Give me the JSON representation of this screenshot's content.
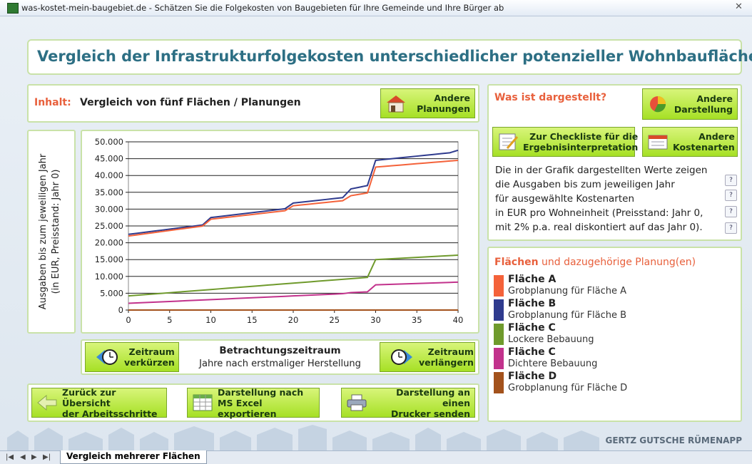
{
  "window_title": "was-kostet-mein-baugebiet.de - Schätzen Sie die Folgekosten von Baugebieten für Ihre Gemeinde und Ihre Bürger ab",
  "header": {
    "title": "Vergleich der Infrastrukturfolgekosten unterschiedlicher potenzieller Wohnbauflächen"
  },
  "content": {
    "label": "Inhalt:",
    "text": "Vergleich von fünf Flächen / Planungen",
    "button": [
      "Andere",
      "Planungen"
    ]
  },
  "period": {
    "shorten": [
      "Zeitraum",
      "verkürzen"
    ],
    "title": "Betrachtungszeitraum",
    "subtitle": "Jahre nach erstmaliger Herstellung",
    "extend": [
      "Zeitraum",
      "verlängern"
    ]
  },
  "bottom_buttons": [
    [
      "Zurück zur Übersicht",
      "der Arbeitsschritte"
    ],
    [
      "Darstellung nach",
      "MS Excel exportieren"
    ],
    [
      "Darstellung an einen",
      "Drucker senden"
    ]
  ],
  "info": {
    "title": "Was ist dargestellt?",
    "buttons": [
      [
        "Andere",
        "Darstellung"
      ],
      [
        "Zur Checkliste für die",
        "Ergebnisinterpretation"
      ],
      [
        "Andere",
        "Kostenarten"
      ]
    ],
    "lines": [
      "Die in der Grafik dargestellten Werte zeigen",
      "die Ausgaben bis zum jeweiligen Jahr",
      "für ausgewählte Kostenarten",
      "in EUR pro Wohneinheit (Preisstand: Jahr 0,",
      "mit 2% p.a. real diskontiert auf das Jahr 0)."
    ],
    "help": [
      "?",
      "?",
      "?",
      "?"
    ]
  },
  "legend_title": [
    "Flächen",
    " und dazugehörige Planung(en)"
  ],
  "footer": {
    "brand": "GERTZ GUTSCHE RÜMENAPP",
    "sheet_tab": "Vergleich mehrerer Flächen",
    "nav": [
      "|◀",
      "◀",
      "▶",
      "▶|"
    ]
  },
  "chart_data": {
    "type": "line",
    "ylabel": [
      "Ausgaben bis zum jeweiligen Jahr",
      "(in EUR, Preisstand: Jahr 0)"
    ],
    "x": [
      0,
      1,
      2,
      3,
      4,
      5,
      6,
      7,
      8,
      9,
      10,
      11,
      12,
      13,
      14,
      15,
      16,
      17,
      18,
      19,
      20,
      21,
      22,
      23,
      24,
      25,
      26,
      27,
      28,
      29,
      30,
      31,
      32,
      33,
      34,
      35,
      36,
      37,
      38,
      39,
      40
    ],
    "xlim": [
      0,
      40
    ],
    "xticks": [
      0,
      5,
      10,
      15,
      20,
      25,
      30,
      35,
      40
    ],
    "ylim": [
      0,
      50000
    ],
    "yticks": [
      0,
      {
        "value": 5000,
        "label": "5.000"
      },
      {
        "value": 10000,
        "label": "10.000"
      },
      {
        "value": 15000,
        "label": "15.000"
      },
      {
        "value": 20000,
        "label": "20.000"
      },
      {
        "value": 25000,
        "label": "25.000"
      },
      {
        "value": 30000,
        "label": "30.000"
      },
      {
        "value": 35000,
        "label": "35.000"
      },
      {
        "value": 40000,
        "label": "40.000"
      },
      {
        "value": 45000,
        "label": "45.000"
      },
      {
        "value": 50000,
        "label": "50.000"
      }
    ],
    "grid": true,
    "series": [
      {
        "name": "Fläche A",
        "planning": "Grobplanung für Fläche A",
        "color": "#f4623a",
        "values": [
          22000,
          22330,
          22660,
          22990,
          23320,
          23650,
          23980,
          24310,
          24640,
          24970,
          27000,
          27280,
          27560,
          27840,
          28120,
          28400,
          28680,
          28960,
          29240,
          29520,
          31000,
          31250,
          31500,
          31750,
          32000,
          32250,
          32500,
          34000,
          34400,
          34800,
          42500,
          42700,
          42900,
          43100,
          43300,
          43500,
          43700,
          43900,
          44100,
          44300,
          44500
        ]
      },
      {
        "name": "Fläche B",
        "planning": "Grobplanung für Fläche B",
        "color": "#2f3b8e",
        "values": [
          22500,
          22810,
          23120,
          23430,
          23740,
          24050,
          24360,
          24670,
          24980,
          25290,
          27500,
          27790,
          28080,
          28370,
          28660,
          28950,
          29240,
          29530,
          29820,
          30110,
          31800,
          32070,
          32340,
          32610,
          32880,
          33150,
          33420,
          36000,
          36500,
          37000,
          44500,
          44750,
          45000,
          45250,
          45500,
          45750,
          46000,
          46250,
          46500,
          46750,
          47500
        ]
      },
      {
        "name": "Fläche C",
        "planning": "Lockere Bebauung",
        "color": "#6f9a2c",
        "values": [
          4200,
          4390,
          4580,
          4770,
          4960,
          5150,
          5340,
          5530,
          5720,
          5910,
          6100,
          6290,
          6480,
          6670,
          6860,
          7050,
          7240,
          7430,
          7620,
          7810,
          8000,
          8190,
          8380,
          8570,
          8760,
          8950,
          9140,
          9330,
          9520,
          9710,
          15000,
          15130,
          15260,
          15390,
          15520,
          15650,
          15780,
          15910,
          16040,
          16170,
          16300
        ]
      },
      {
        "name": "Fläche C",
        "planning": "Dichtere Bebauung",
        "color": "#c2328c",
        "values": [
          2000,
          2110,
          2220,
          2330,
          2440,
          2550,
          2660,
          2770,
          2880,
          2990,
          3100,
          3210,
          3320,
          3430,
          3540,
          3650,
          3760,
          3870,
          3980,
          4090,
          4200,
          4310,
          4420,
          4530,
          4640,
          4750,
          4860,
          5200,
          5300,
          5400,
          7500,
          7580,
          7660,
          7740,
          7820,
          7900,
          7980,
          8060,
          8140,
          8220,
          8300
        ]
      },
      {
        "name": "Fläche D",
        "planning": "Grobplanung für Fläche D",
        "color": "#a3521c",
        "values": [
          0,
          0,
          0,
          0,
          0,
          0,
          0,
          0,
          0,
          0,
          0,
          0,
          0,
          0,
          0,
          0,
          0,
          0,
          0,
          0,
          0,
          0,
          0,
          0,
          0,
          0,
          0,
          0,
          0,
          0,
          0,
          0,
          0,
          0,
          0,
          0,
          0,
          0,
          0,
          0,
          0
        ]
      }
    ]
  }
}
